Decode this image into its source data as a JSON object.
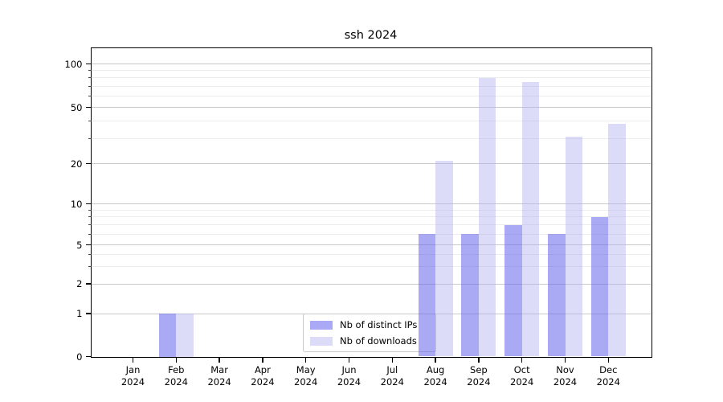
{
  "chart_data": {
    "type": "bar",
    "title": "ssh 2024",
    "x": {
      "categories": [
        "Jan",
        "Feb",
        "Mar",
        "Apr",
        "May",
        "Jun",
        "Jul",
        "Aug",
        "Sep",
        "Oct",
        "Nov",
        "Dec"
      ],
      "year_label": "2024"
    },
    "series": [
      {
        "name": "Nb of distinct IPs",
        "color": "#6464eb",
        "alpha": 0.55,
        "legend_swatch": "#a9a9f5",
        "values": [
          0,
          1,
          0,
          0,
          0,
          0,
          0,
          6,
          6,
          7,
          6,
          8
        ]
      },
      {
        "name": "Nb of downloads",
        "color": "#afaff2",
        "alpha": 0.44,
        "legend_swatch": "#dcdcf9",
        "values": [
          0,
          1,
          0,
          0,
          0,
          0,
          0,
          21,
          80,
          75,
          31,
          38
        ]
      }
    ],
    "y_axis": {
      "scale": "symlog",
      "major_ticks": [
        0,
        1,
        2,
        5,
        10,
        20,
        50,
        100
      ],
      "minor_gridlines": [
        3,
        4,
        6,
        7,
        8,
        9,
        30,
        40,
        60,
        70,
        80,
        90
      ],
      "range": [
        0,
        120
      ]
    },
    "legend": {
      "position": "lower center"
    },
    "grid": true
  }
}
